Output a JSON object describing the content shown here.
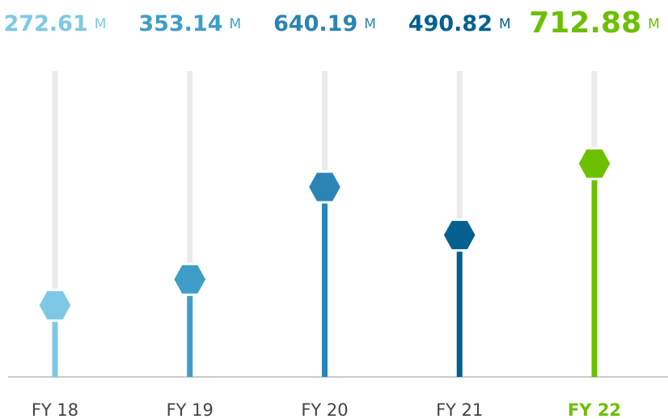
{
  "chart_data": {
    "type": "lollipop",
    "categories": [
      "FY 18",
      "FY 19",
      "FY 20",
      "FY 21",
      "FY 22"
    ],
    "values": [
      272.61,
      353.14,
      640.19,
      490.82,
      712.88
    ],
    "unit": "M",
    "colors": [
      "#7ec8e6",
      "#3f9ec8",
      "#2a84b4",
      "#046090",
      "#6cc000"
    ],
    "highlight": 4,
    "ylim": [
      50,
      1000
    ]
  }
}
